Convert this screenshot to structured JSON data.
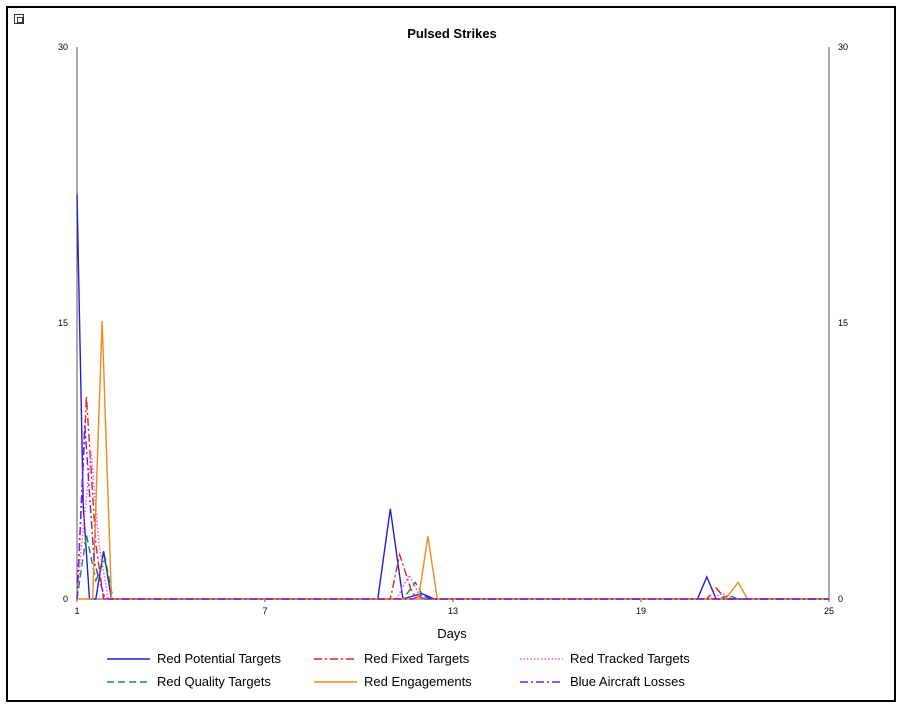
{
  "chart_data": {
    "type": "line",
    "title": "Pulsed Strikes",
    "xlabel": "Days",
    "ylabel": "",
    "xlim": [
      1,
      25
    ],
    "ylim": [
      0,
      30
    ],
    "x_ticks": [
      "1",
      "7",
      "13",
      "19",
      "25"
    ],
    "y_ticks": [
      "0",
      "15",
      "30"
    ],
    "y_ticks_right": [
      "0",
      "15",
      "30"
    ],
    "legend_position": "bottom",
    "series": [
      {
        "name": "Red Potential Targets",
        "color": "#1f1fd6",
        "style": "solid",
        "points": [
          [
            1,
            22
          ],
          [
            1.2,
            5
          ],
          [
            1.4,
            0
          ],
          [
            1.6,
            0
          ],
          [
            1.85,
            2.6
          ],
          [
            2.1,
            0
          ],
          [
            10.6,
            0
          ],
          [
            11,
            4.9
          ],
          [
            11.4,
            0
          ],
          [
            12,
            0.3
          ],
          [
            12.4,
            0
          ],
          [
            20.8,
            0
          ],
          [
            21.1,
            1.2
          ],
          [
            21.4,
            0
          ],
          [
            25,
            0
          ]
        ]
      },
      {
        "name": "Red Fixed Targets",
        "color": "#e0202a",
        "style": "dashdot",
        "points": [
          [
            1,
            0
          ],
          [
            1.3,
            11
          ],
          [
            1.6,
            3
          ],
          [
            1.85,
            0
          ],
          [
            11,
            0
          ],
          [
            11.3,
            2.4
          ],
          [
            11.7,
            0.3
          ],
          [
            12.1,
            0
          ],
          [
            21.1,
            0
          ],
          [
            21.4,
            0.6
          ],
          [
            21.7,
            0
          ],
          [
            25,
            0
          ]
        ]
      },
      {
        "name": "Red Tracked Targets",
        "color": "#ff55dd",
        "style": "dotted",
        "points": [
          [
            1,
            0
          ],
          [
            1.15,
            3
          ],
          [
            1.45,
            8
          ],
          [
            1.7,
            3
          ],
          [
            2,
            0
          ],
          [
            11.2,
            0
          ],
          [
            11.6,
            1.3
          ],
          [
            12,
            0
          ],
          [
            21.2,
            0
          ],
          [
            21.6,
            0.3
          ],
          [
            22,
            0
          ],
          [
            25,
            0
          ]
        ]
      },
      {
        "name": "Red Quality Targets",
        "color": "#1a8a4a",
        "style": "dashed",
        "points": [
          [
            1,
            0
          ],
          [
            1.3,
            3.5
          ],
          [
            1.6,
            1
          ],
          [
            1.9,
            2.2
          ],
          [
            2.15,
            0
          ],
          [
            11.4,
            0
          ],
          [
            11.8,
            0.9
          ],
          [
            12.1,
            0
          ],
          [
            21.5,
            0
          ],
          [
            21.8,
            0.2
          ],
          [
            22.1,
            0
          ],
          [
            25,
            0
          ]
        ]
      },
      {
        "name": "Red Engagements",
        "color": "#f08a1a",
        "style": "solid",
        "points": [
          [
            1,
            0
          ],
          [
            1.5,
            0
          ],
          [
            1.8,
            15.1
          ],
          [
            2.1,
            0
          ],
          [
            11.9,
            0
          ],
          [
            12.2,
            3.4
          ],
          [
            12.5,
            0
          ],
          [
            21.7,
            0
          ],
          [
            22.1,
            0.9
          ],
          [
            22.4,
            0
          ],
          [
            25,
            0
          ]
        ]
      },
      {
        "name": "Blue Aircraft Losses",
        "color": "#7a1ae0",
        "style": "dashdot",
        "points": [
          [
            1,
            0
          ],
          [
            1.25,
            9.5
          ],
          [
            1.55,
            2
          ],
          [
            1.9,
            0
          ],
          [
            11.7,
            0
          ],
          [
            12,
            0.2
          ],
          [
            12.3,
            0
          ],
          [
            25,
            0
          ]
        ]
      }
    ]
  }
}
